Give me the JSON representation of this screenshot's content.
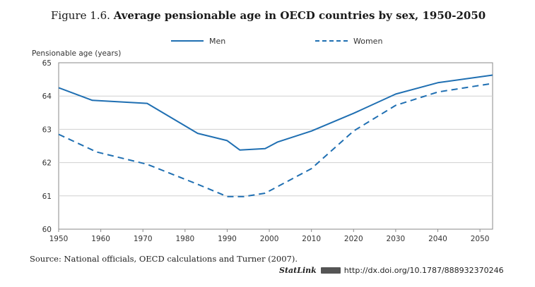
{
  "figure": {
    "label": "Figure 1.6.",
    "title": "Average pensionable age in OECD countries by sex, 1950-2050"
  },
  "footer": {
    "source": "Source: National officials, OECD calculations and Turner (2007).",
    "statlink_label": "StatLink",
    "statlink_url": "http://dx.doi.org/10.1787/888932370246"
  },
  "chart_data": {
    "type": "line",
    "ylabel": "Pensionable age (years)",
    "xlabel": "",
    "xlim": [
      1950,
      2053
    ],
    "ylim": [
      60,
      65
    ],
    "x_ticks": [
      1950,
      1960,
      1970,
      1980,
      1990,
      2000,
      2010,
      2020,
      2030,
      2040,
      2050
    ],
    "y_ticks": [
      60,
      61,
      62,
      63,
      64,
      65
    ],
    "grid": "horizontal",
    "legend_position": "top",
    "color": "#1f6fb2",
    "series": [
      {
        "name": "Men",
        "style": "solid",
        "points": [
          [
            1950,
            64.25
          ],
          [
            1958,
            63.87
          ],
          [
            1971,
            63.78
          ],
          [
            1983,
            62.88
          ],
          [
            1990,
            62.66
          ],
          [
            1993,
            62.38
          ],
          [
            1999,
            62.42
          ],
          [
            2002,
            62.62
          ],
          [
            2010,
            62.95
          ],
          [
            2020,
            63.48
          ],
          [
            2030,
            64.06
          ],
          [
            2040,
            64.4
          ],
          [
            2053,
            64.63
          ]
        ]
      },
      {
        "name": "Women",
        "style": "dashed",
        "points": [
          [
            1950,
            62.85
          ],
          [
            1959,
            62.32
          ],
          [
            1971,
            61.95
          ],
          [
            1983,
            61.35
          ],
          [
            1990,
            60.98
          ],
          [
            1994,
            60.98
          ],
          [
            1999,
            61.08
          ],
          [
            2010,
            61.82
          ],
          [
            2020,
            62.95
          ],
          [
            2030,
            63.72
          ],
          [
            2040,
            64.12
          ],
          [
            2053,
            64.38
          ]
        ]
      }
    ]
  }
}
